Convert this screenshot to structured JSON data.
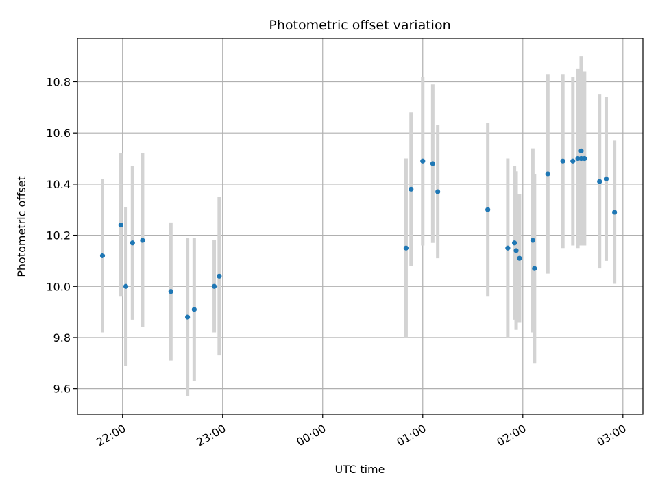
{
  "chart_data": {
    "type": "scatter",
    "title": "Photometric offset variation",
    "xlabel": "UTC time",
    "ylabel": "Photometric offset",
    "x_tick_labels": [
      "22:00",
      "23:00",
      "00:00",
      "01:00",
      "02:00",
      "03:00"
    ],
    "x_ticks_hours": [
      22,
      23,
      24,
      25,
      26,
      27
    ],
    "xlim_hours": [
      21.55,
      27.2
    ],
    "y_ticks": [
      9.6,
      9.8,
      10.0,
      10.2,
      10.4,
      10.6,
      10.8
    ],
    "y_tick_labels": [
      "9.6",
      "9.8",
      "10.0",
      "10.2",
      "10.4",
      "10.6",
      "10.8"
    ],
    "ylim": [
      9.5,
      10.97
    ],
    "grid": true,
    "colors": {
      "point": "#1f77b4",
      "errorbar": "#d3d3d3",
      "grid": "#b0b0b0",
      "axis": "#000000"
    },
    "series": [
      {
        "points": [
          {
            "time": "21:48",
            "y": 10.12,
            "err": 0.3
          },
          {
            "time": "21:59",
            "y": 10.24,
            "err": 0.28
          },
          {
            "time": "22:02",
            "y": 10.0,
            "err": 0.31
          },
          {
            "time": "22:06",
            "y": 10.17,
            "err": 0.3
          },
          {
            "time": "22:12",
            "y": 10.18,
            "err": 0.34
          },
          {
            "time": "22:29",
            "y": 9.98,
            "err": 0.27
          },
          {
            "time": "22:39",
            "y": 9.88,
            "err": 0.31
          },
          {
            "time": "22:43",
            "y": 9.91,
            "err": 0.28
          },
          {
            "time": "22:55",
            "y": 10.0,
            "err": 0.18
          },
          {
            "time": "22:58",
            "y": 10.04,
            "err": 0.31
          },
          {
            "time": "00:50",
            "y": 10.15,
            "err": 0.35
          },
          {
            "time": "00:53",
            "y": 10.38,
            "err": 0.3
          },
          {
            "time": "01:00",
            "y": 10.49,
            "err": 0.33
          },
          {
            "time": "01:06",
            "y": 10.48,
            "err": 0.31
          },
          {
            "time": "01:09",
            "y": 10.37,
            "err": 0.26
          },
          {
            "time": "01:39",
            "y": 10.3,
            "err": 0.34
          },
          {
            "time": "01:51",
            "y": 10.15,
            "err": 0.35
          },
          {
            "time": "01:55",
            "y": 10.17,
            "err": 0.3
          },
          {
            "time": "01:56",
            "y": 10.14,
            "err": 0.31
          },
          {
            "time": "01:58",
            "y": 10.11,
            "err": 0.25
          },
          {
            "time": "02:06",
            "y": 10.18,
            "err": 0.36
          },
          {
            "time": "02:07",
            "y": 10.07,
            "err": 0.37
          },
          {
            "time": "02:15",
            "y": 10.44,
            "err": 0.39
          },
          {
            "time": "02:24",
            "y": 10.49,
            "err": 0.34
          },
          {
            "time": "02:30",
            "y": 10.49,
            "err": 0.33
          },
          {
            "time": "02:33",
            "y": 10.5,
            "err": 0.35
          },
          {
            "time": "02:35",
            "y": 10.53,
            "err": 0.37
          },
          {
            "time": "02:35",
            "y": 10.5,
            "err": 0.33
          },
          {
            "time": "02:37",
            "y": 10.5,
            "err": 0.34
          },
          {
            "time": "02:46",
            "y": 10.41,
            "err": 0.34
          },
          {
            "time": "02:50",
            "y": 10.42,
            "err": 0.32
          },
          {
            "time": "02:55",
            "y": 10.29,
            "err": 0.28
          }
        ]
      }
    ]
  }
}
